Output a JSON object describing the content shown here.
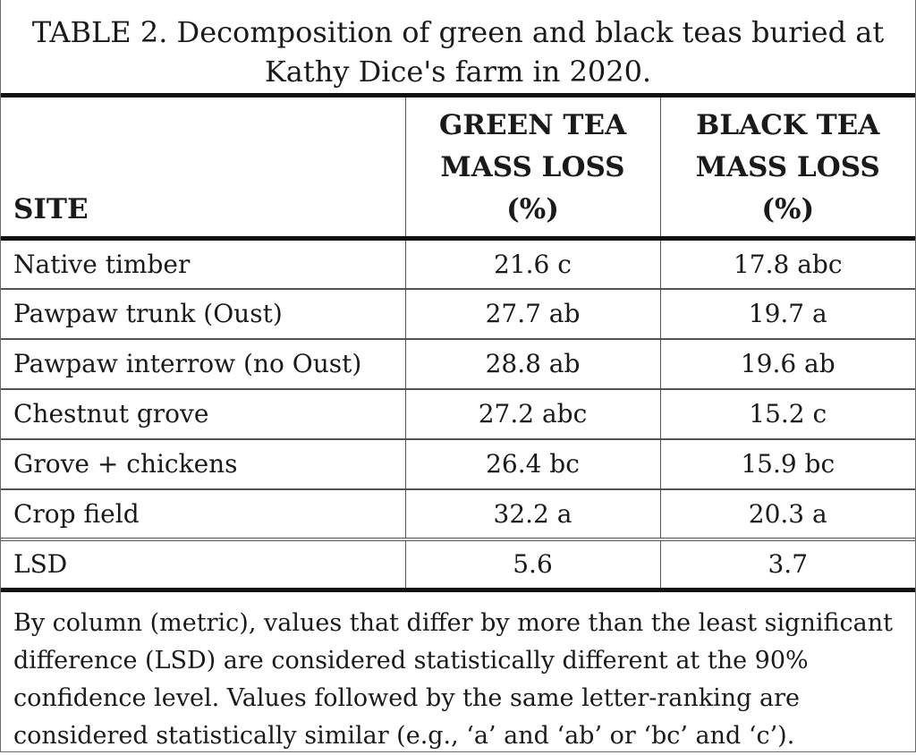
{
  "caption": {
    "line1": "TABLE 2. Decomposition of green and black teas buried at",
    "line2": "Kathy Dice's farm in 2020."
  },
  "table": {
    "headers": [
      "SITE",
      "GREEN TEA\nMASS LOSS\n(%)",
      "BLACK TEA\nMASS LOSS\n(%)"
    ],
    "rows": [
      [
        "Native timber",
        "21.6 c",
        "17.8 abc"
      ],
      [
        "Pawpaw trunk (Oust)",
        "27.7 ab",
        "19.7 a"
      ],
      [
        "Pawpaw interrow (no Oust)",
        "28.8 ab",
        "19.6 ab"
      ],
      [
        "Chestnut grove",
        "27.2 abc",
        "15.2 c"
      ],
      [
        "Grove + chickens",
        "26.4 bc",
        "15.9 bc"
      ],
      [
        "Crop field",
        "32.2 a",
        "20.3 a"
      ]
    ],
    "lsd_row": [
      "LSD",
      "5.6",
      "3.7"
    ]
  },
  "footnote": "By column (metric), values that differ by more than the least significant difference (LSD) are considered statistically different at the 90% confidence level. Values followed by the same letter-ranking are considered statistically similar (e.g., ‘a’ and ‘ab’ or ‘bc’ and ‘c’)."
}
